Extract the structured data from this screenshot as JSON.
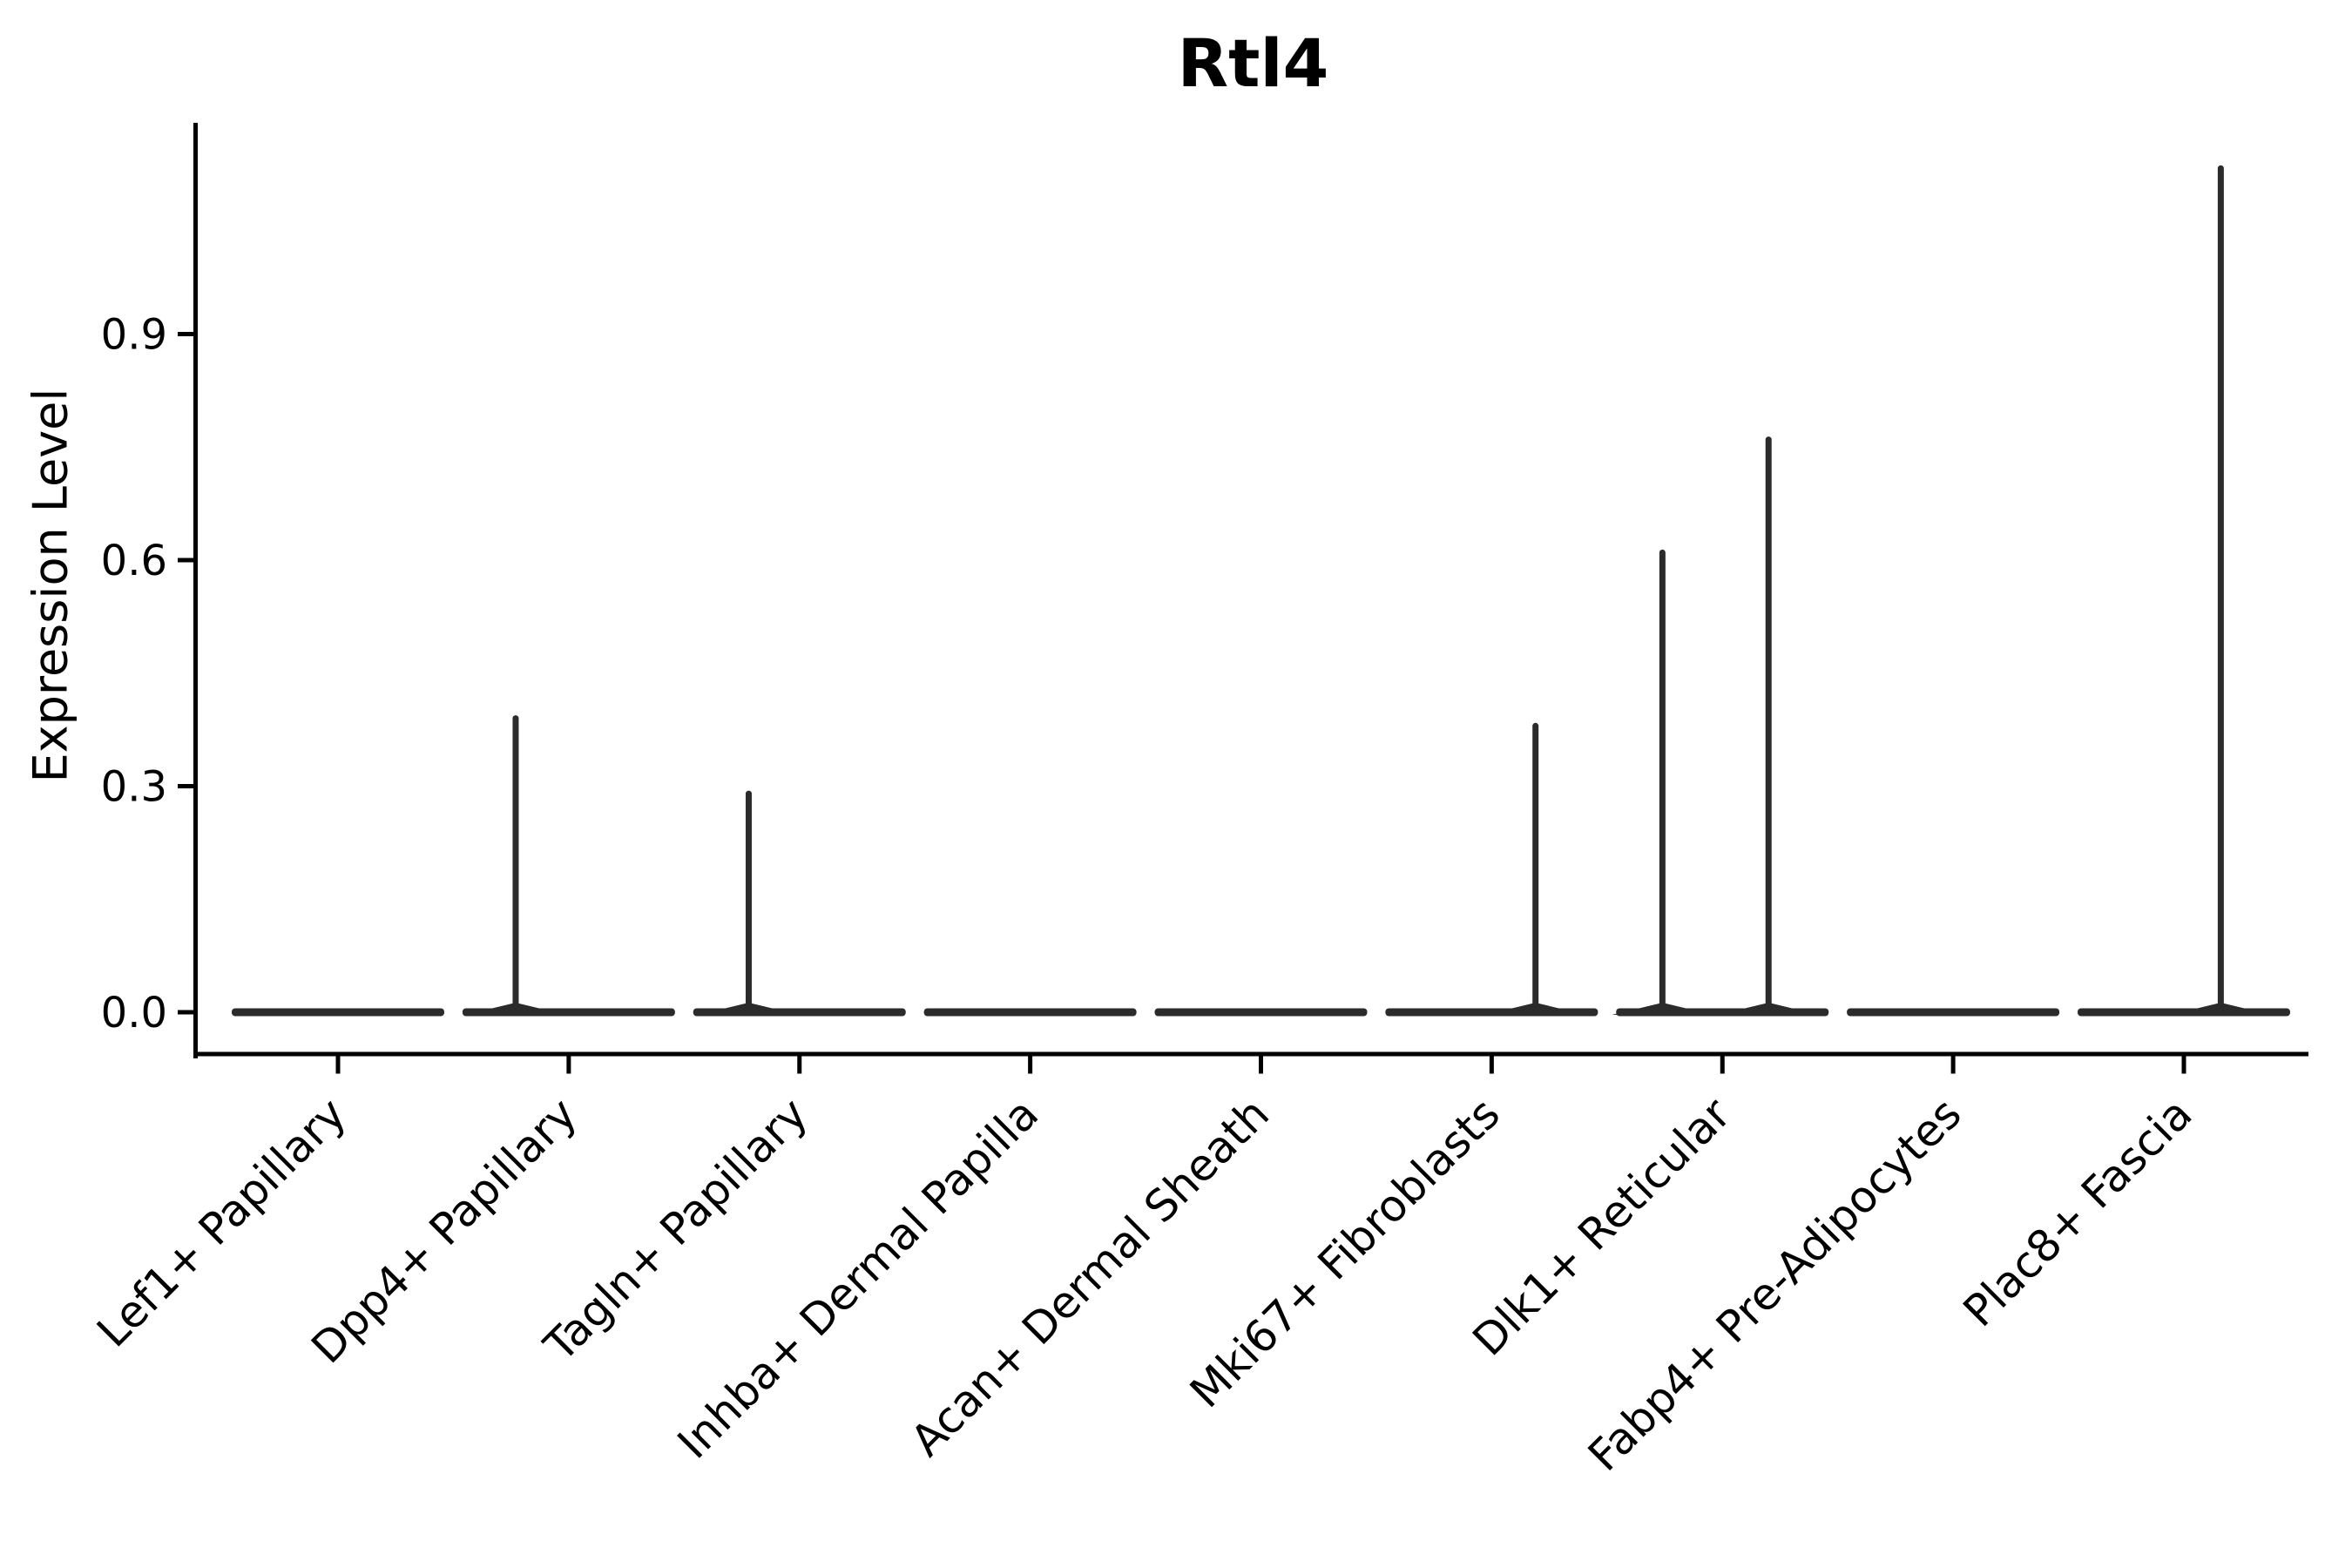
{
  "figure": {
    "title": "Rtl4"
  },
  "chart_data": {
    "type": "violin",
    "title": "Rtl4",
    "subtitle": "",
    "xlabel": "",
    "ylabel": "Expression Level",
    "legend_position": "none",
    "grid": false,
    "background": "#ffffff",
    "categories": [
      "Lef1+ Papillary",
      "Dpp4+ Papillary",
      "Tagln+ Papillary",
      "Inhba+ Dermal Papilla",
      "Acan+ Dermal Sheath",
      "Mki67+ Fibroblasts",
      "Dlk1+ Reticular",
      "Fabp4+ Pre-Adipocytes",
      "Plac8+ Fascia"
    ],
    "yticks": [
      0.0,
      0.3,
      0.6,
      0.9
    ],
    "ylim": [
      0.0,
      1.18
    ],
    "violins": [
      {
        "category": "Lef1+ Papillary",
        "baseline_value": 0.0,
        "max_expression": 0.0,
        "spikes": []
      },
      {
        "category": "Dpp4+ Papillary",
        "baseline_value": 0.0,
        "max_expression": 0.39,
        "spikes": [
          {
            "value": 0.39,
            "offset": -0.23
          }
        ]
      },
      {
        "category": "Tagln+ Papillary",
        "baseline_value": 0.0,
        "max_expression": 0.29,
        "spikes": [
          {
            "value": 0.29,
            "offset": -0.22
          }
        ]
      },
      {
        "category": "Inhba+ Dermal Papilla",
        "baseline_value": 0.0,
        "max_expression": 0.0,
        "spikes": []
      },
      {
        "category": "Acan+ Dermal Sheath",
        "baseline_value": 0.0,
        "max_expression": 0.0,
        "spikes": []
      },
      {
        "category": "Mki67+ Fibroblasts",
        "baseline_value": 0.0,
        "max_expression": 0.38,
        "spikes": [
          {
            "value": 0.38,
            "offset": 0.19
          }
        ]
      },
      {
        "category": "Dlk1+ Reticular",
        "baseline_value": 0.0,
        "max_expression": 0.76,
        "spikes": [
          {
            "value": 0.61,
            "offset": -0.26
          },
          {
            "value": 0.76,
            "offset": 0.2
          }
        ]
      },
      {
        "category": "Fabp4+ Pre-Adipocytes",
        "baseline_value": 0.0,
        "max_expression": 0.0,
        "spikes": []
      },
      {
        "category": "Plac8+ Fascia",
        "baseline_value": 0.0,
        "max_expression": 1.12,
        "spikes": [
          {
            "value": 1.12,
            "offset": 0.16
          }
        ]
      }
    ],
    "colors": {
      "violin_line": "#2b2b2b",
      "axis": "#000000",
      "text": "#000000",
      "background": "#ffffff"
    }
  }
}
